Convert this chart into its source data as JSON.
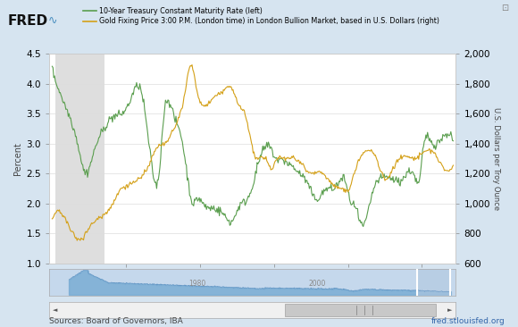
{
  "bg_color": "#d6e4f0",
  "main_plot_bg": "#ffffff",
  "line1_color": "#5a9e4e",
  "line2_color": "#d4a017",
  "line1_label": "10-Year Treasury Constant Maturity Rate (left)",
  "line2_label": "Gold Fixing Price 3:00 P.M. (London time) in London Bullion Market, based in U.S. Dollars (right)",
  "ylabel_left": "Percent",
  "ylabel_right": "U.S. Dollars per Troy Ounce",
  "source_text": "Sources: Board of Governors, IBA",
  "fred_url": "fred.stlouisfed.org",
  "ylim_left": [
    1.0,
    4.5
  ],
  "ylim_right": [
    600,
    2000
  ],
  "yticks_left": [
    1.0,
    1.5,
    2.0,
    2.5,
    3.0,
    3.5,
    4.0,
    4.5
  ],
  "yticks_right": [
    600,
    800,
    1000,
    1200,
    1400,
    1600,
    1800,
    2000
  ],
  "shaded_start": 2008.08,
  "shaded_end": 2009.42,
  "xlim": [
    2007.92,
    2018.92
  ],
  "xticks": [
    2010,
    2012,
    2014,
    2016,
    2018
  ],
  "nav_highlight_start": 2015.5,
  "nav_highlight_end": 2018.92
}
